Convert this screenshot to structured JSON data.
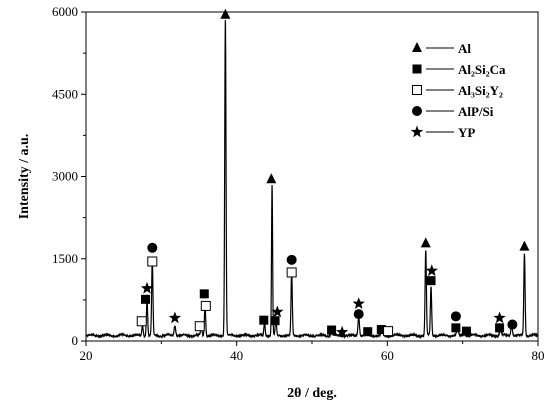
{
  "chart_data": {
    "type": "line",
    "xlabel": "2θ / deg.",
    "ylabel": "Intensity / a.u.",
    "xlim": [
      20,
      80
    ],
    "ylim": [
      0,
      6000
    ],
    "xticks": [
      20,
      40,
      60,
      80
    ],
    "yticks": [
      0,
      1500,
      3000,
      4500,
      6000
    ],
    "grid": false,
    "legend_position": "top-right",
    "baseline": 100,
    "peaks": [
      {
        "x": 27.5,
        "y": 200,
        "w": 0.12
      },
      {
        "x": 28.1,
        "y": 650,
        "w": 0.12
      },
      {
        "x": 28.8,
        "y": 1350,
        "w": 0.12
      },
      {
        "x": 31.8,
        "y": 180,
        "w": 0.15
      },
      {
        "x": 35.3,
        "y": 180,
        "w": 0.12
      },
      {
        "x": 35.8,
        "y": 560,
        "w": 0.12
      },
      {
        "x": 38.5,
        "y": 5750,
        "w": 0.12
      },
      {
        "x": 43.7,
        "y": 250,
        "w": 0.12
      },
      {
        "x": 44.7,
        "y": 2750,
        "w": 0.1
      },
      {
        "x": 45.2,
        "y": 300,
        "w": 0.12
      },
      {
        "x": 47.3,
        "y": 1150,
        "w": 0.12
      },
      {
        "x": 52.6,
        "y": 70,
        "w": 0.15
      },
      {
        "x": 56.2,
        "y": 350,
        "w": 0.14
      },
      {
        "x": 57.4,
        "y": 60,
        "w": 0.15
      },
      {
        "x": 59.3,
        "y": 90,
        "w": 0.15
      },
      {
        "x": 65.1,
        "y": 1550,
        "w": 0.12
      },
      {
        "x": 65.8,
        "y": 880,
        "w": 0.12
      },
      {
        "x": 69.3,
        "y": 150,
        "w": 0.15
      },
      {
        "x": 70.2,
        "y": 60,
        "w": 0.15
      },
      {
        "x": 75.0,
        "y": 120,
        "w": 0.15
      },
      {
        "x": 76.5,
        "y": 200,
        "w": 0.15
      },
      {
        "x": 78.2,
        "y": 1500,
        "w": 0.12
      }
    ],
    "legend": [
      {
        "marker": "triangle",
        "label": "Al"
      },
      {
        "marker": "square-filled",
        "label": "Al₂Si₂Ca"
      },
      {
        "marker": "square-open",
        "label": "Al₃Si₂Y₂"
      },
      {
        "marker": "circle",
        "label": "AlP/Si"
      },
      {
        "marker": "star",
        "label": "YP"
      }
    ],
    "markers": [
      {
        "type": "square-open",
        "x": 27.4,
        "y": 360
      },
      {
        "type": "square-filled",
        "x": 27.9,
        "y": 760
      },
      {
        "type": "star",
        "x": 28.1,
        "y": 960
      },
      {
        "type": "circle",
        "x": 28.8,
        "y": 1700
      },
      {
        "type": "square-open",
        "x": 28.8,
        "y": 1450
      },
      {
        "type": "star",
        "x": 31.8,
        "y": 420
      },
      {
        "type": "square-open",
        "x": 35.1,
        "y": 270
      },
      {
        "type": "square-filled",
        "x": 35.7,
        "y": 860
      },
      {
        "type": "square-open",
        "x": 35.9,
        "y": 640
      },
      {
        "type": "triangle",
        "x": 38.5,
        "y": 5950
      },
      {
        "type": "square-filled",
        "x": 43.6,
        "y": 380
      },
      {
        "type": "triangle",
        "x": 44.6,
        "y": 2950
      },
      {
        "type": "star",
        "x": 45.4,
        "y": 530
      },
      {
        "type": "square-filled",
        "x": 45.1,
        "y": 370
      },
      {
        "type": "circle",
        "x": 47.3,
        "y": 1480
      },
      {
        "type": "square-open",
        "x": 47.3,
        "y": 1250
      },
      {
        "type": "square-filled",
        "x": 52.6,
        "y": 200
      },
      {
        "type": "star",
        "x": 54.0,
        "y": 160
      },
      {
        "type": "circle",
        "x": 56.2,
        "y": 490
      },
      {
        "type": "star",
        "x": 56.2,
        "y": 680
      },
      {
        "type": "square-filled",
        "x": 57.4,
        "y": 170
      },
      {
        "type": "square-filled",
        "x": 59.2,
        "y": 210
      },
      {
        "type": "square-open",
        "x": 60.1,
        "y": 180
      },
      {
        "type": "triangle",
        "x": 65.1,
        "y": 1780
      },
      {
        "type": "star",
        "x": 65.9,
        "y": 1280
      },
      {
        "type": "square-filled",
        "x": 65.8,
        "y": 1100
      },
      {
        "type": "circle",
        "x": 69.1,
        "y": 450
      },
      {
        "type": "square-filled",
        "x": 69.1,
        "y": 240
      },
      {
        "type": "square-filled",
        "x": 70.5,
        "y": 180
      },
      {
        "type": "star",
        "x": 74.9,
        "y": 420
      },
      {
        "type": "square-filled",
        "x": 74.9,
        "y": 240
      },
      {
        "type": "circle",
        "x": 76.6,
        "y": 300
      },
      {
        "type": "triangle",
        "x": 78.2,
        "y": 1720
      }
    ]
  }
}
